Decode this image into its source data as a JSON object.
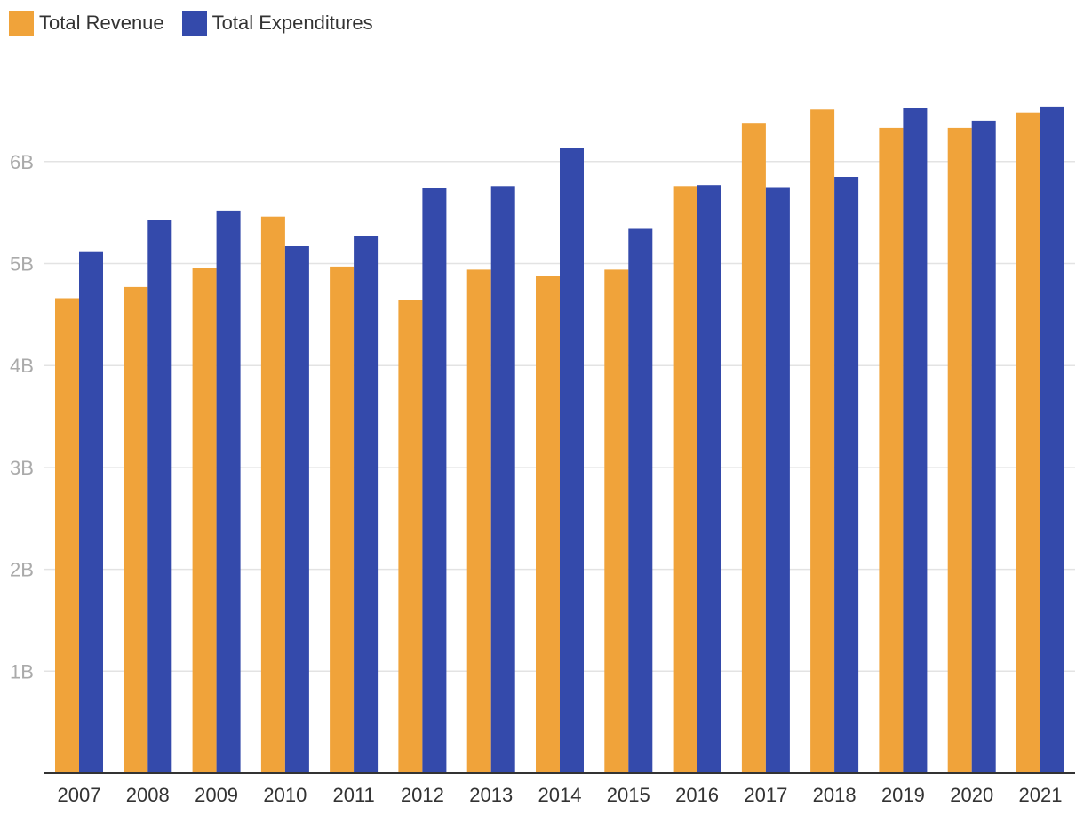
{
  "colors": {
    "revenue": "#F0A33A",
    "expenditures": "#344AAB",
    "grid": "#E3E3E3",
    "axis": "#333333",
    "ytick": "#AAAAAA",
    "xtick": "#333333"
  },
  "chart_data": {
    "type": "bar",
    "title": "",
    "xlabel": "",
    "ylabel": "",
    "categories": [
      "2007",
      "2008",
      "2009",
      "2010",
      "2011",
      "2012",
      "2013",
      "2014",
      "2015",
      "2016",
      "2017",
      "2018",
      "2019",
      "2020",
      "2021"
    ],
    "series": [
      {
        "name": "Total Revenue",
        "color_key": "revenue",
        "values": [
          4.66,
          4.77,
          4.96,
          5.46,
          4.97,
          4.64,
          4.94,
          4.88,
          4.94,
          5.76,
          6.38,
          6.51,
          6.33,
          6.33,
          6.48
        ]
      },
      {
        "name": "Total Expenditures",
        "color_key": "expenditures",
        "values": [
          5.12,
          5.43,
          5.52,
          5.17,
          5.27,
          5.74,
          5.76,
          6.13,
          5.34,
          5.77,
          5.75,
          5.85,
          6.53,
          6.4,
          6.54
        ]
      }
    ],
    "ylim": [
      0,
      6.6
    ],
    "yticks": [
      1,
      2,
      3,
      4,
      5,
      6
    ],
    "ytick_labels": [
      "1B",
      "2B",
      "3B",
      "4B",
      "5B",
      "6B"
    ],
    "grid": true,
    "legend": "top-left"
  }
}
